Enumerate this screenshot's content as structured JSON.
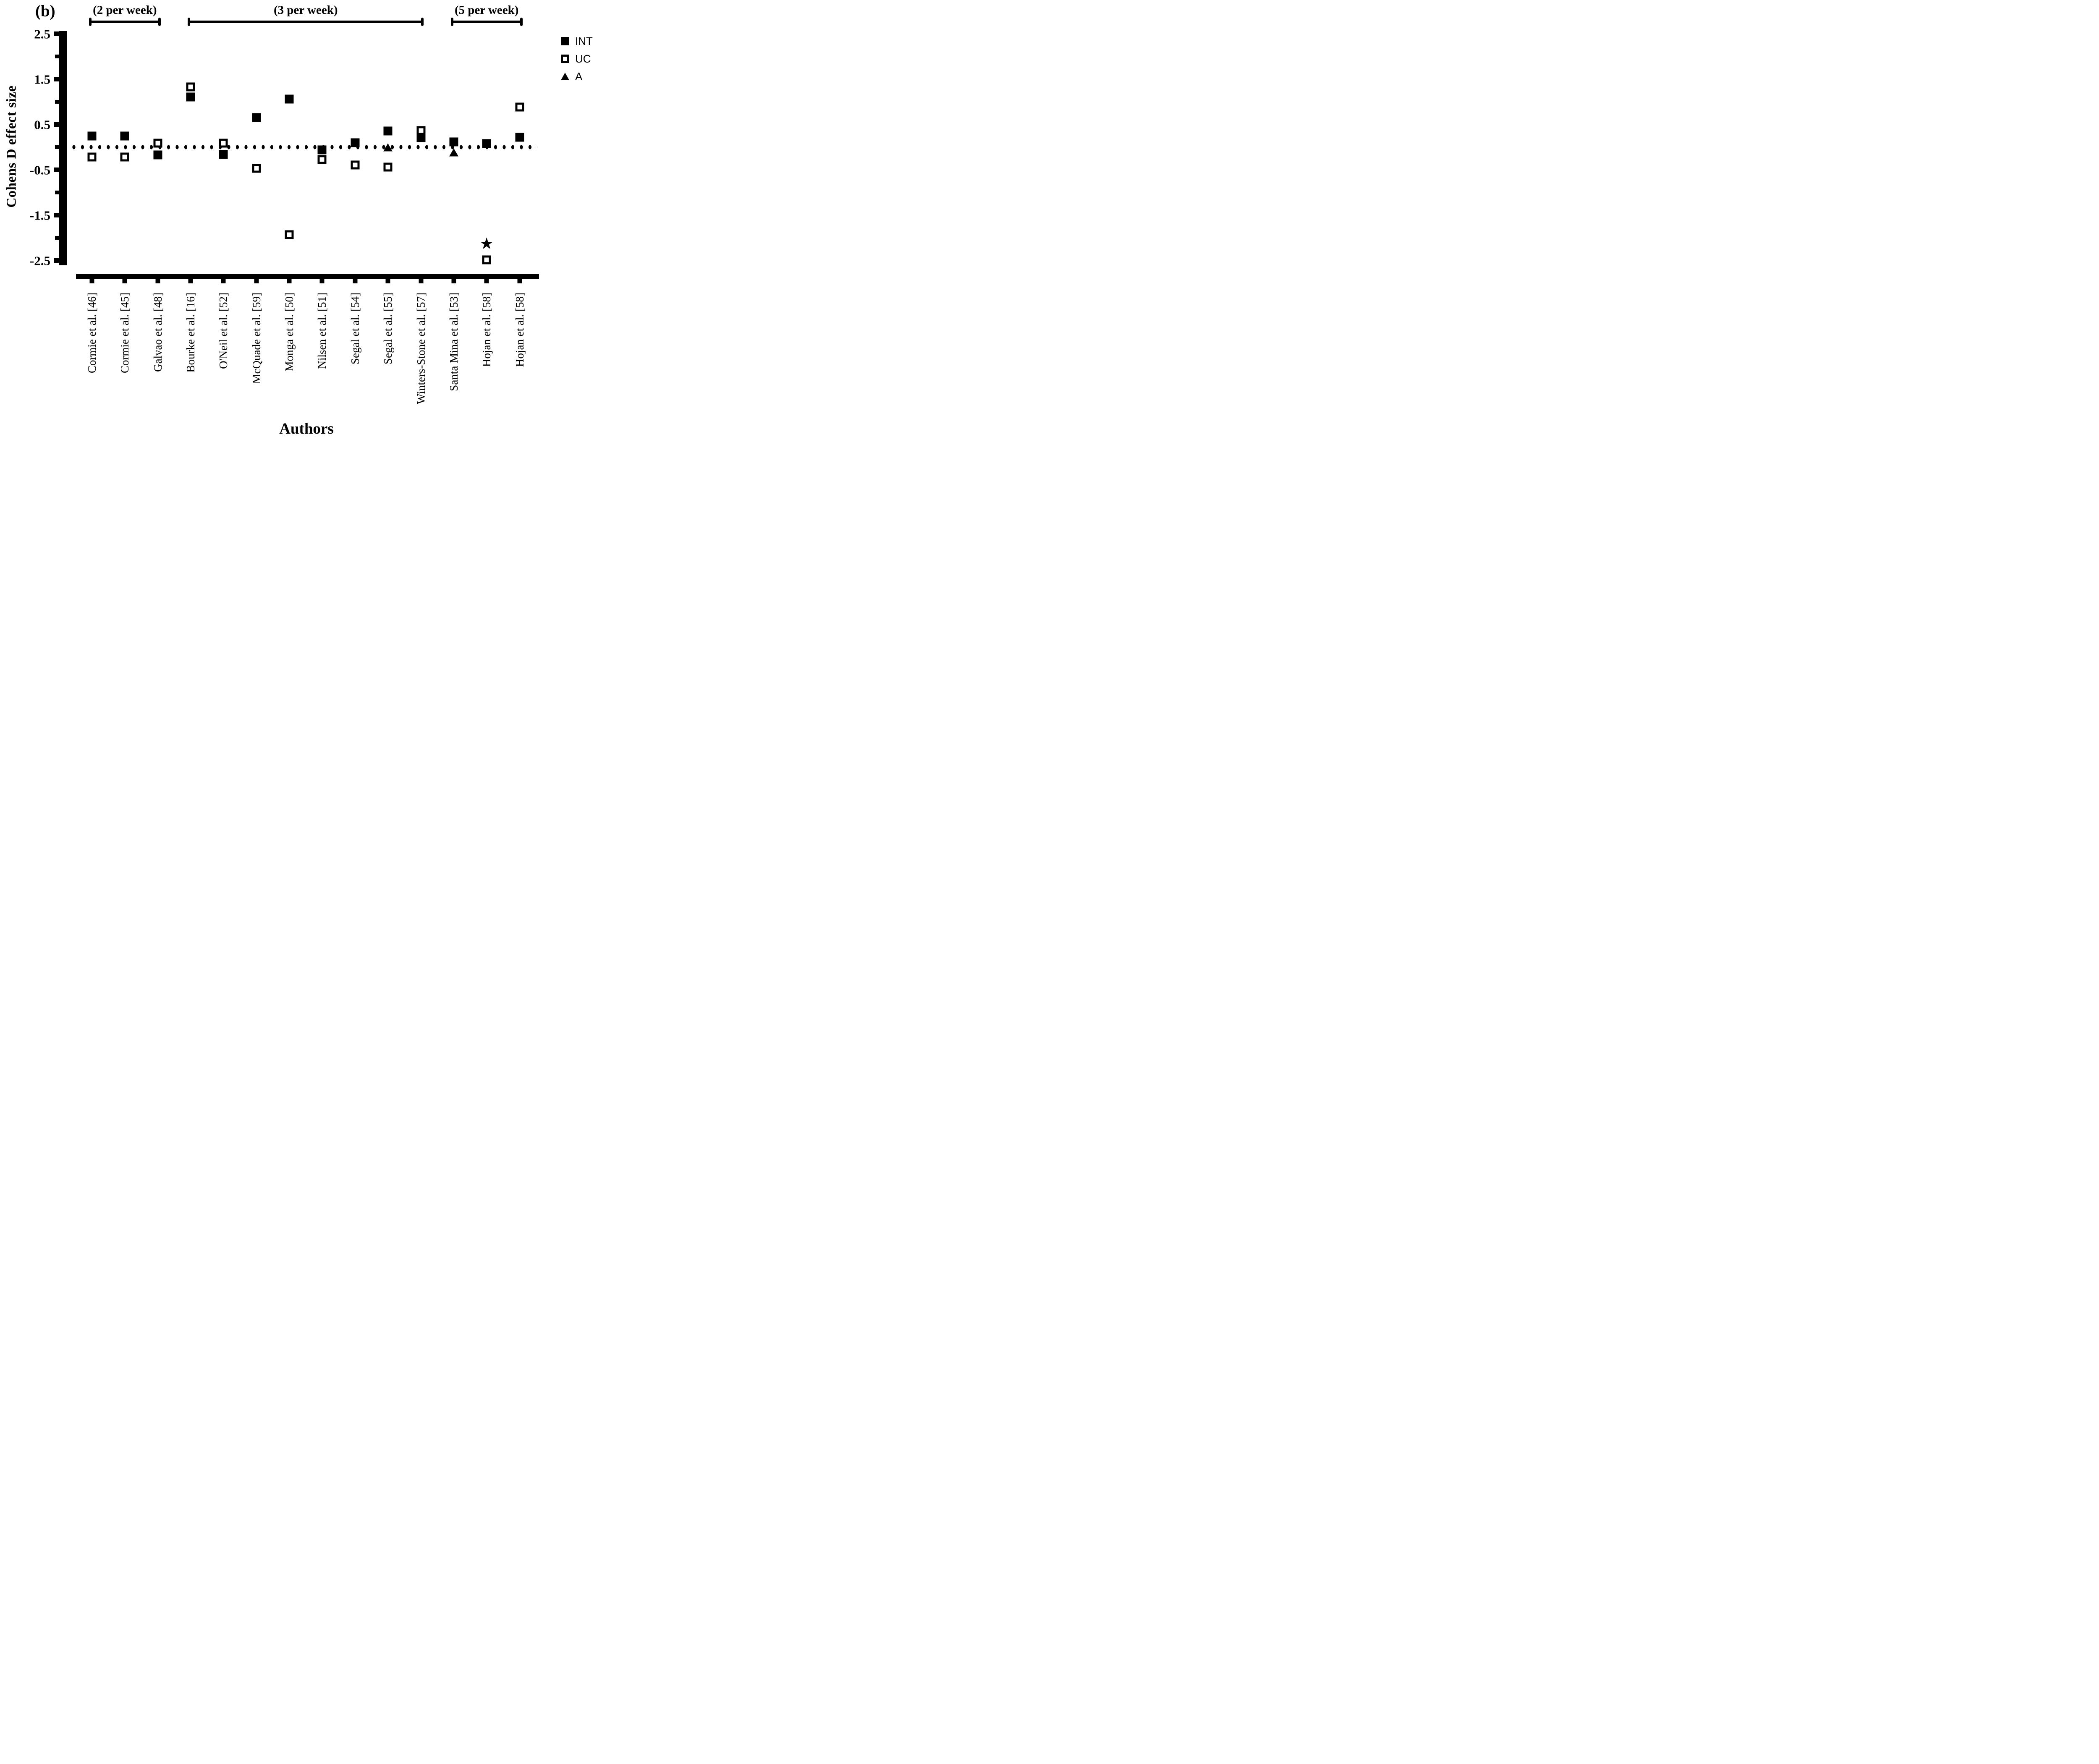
{
  "figure_label": "(b)",
  "axes": {
    "y_title": "Cohens D effect size",
    "x_title": "Authors",
    "y_ticks_major": [
      2.5,
      1.5,
      0.5,
      -0.5,
      -1.5,
      -2.5
    ],
    "y_ticks_minor": [
      2.0,
      1.0,
      0.0,
      -1.0,
      -2.0
    ],
    "ylim": [
      -2.5,
      2.5
    ]
  },
  "chart_data": {
    "type": "scatter",
    "title": "",
    "xlabel": "Authors",
    "ylabel": "Cohens D effect size",
    "ylim": [
      -2.5,
      2.5
    ],
    "zero_reference_line": 0,
    "grid": "off",
    "legend_position": "top-right",
    "legend": [
      {
        "label": "INT",
        "marker": "filled-square"
      },
      {
        "label": "UC",
        "marker": "open-square"
      },
      {
        "label": "A",
        "marker": "filled-triangle"
      }
    ],
    "groups": [
      {
        "label": "(2 per week)",
        "from_index": 0,
        "to_index": 2
      },
      {
        "label": "(3 per week)",
        "from_index": 3,
        "to_index": 10
      },
      {
        "label": "(5 per week)",
        "from_index": 11,
        "to_index": 13
      }
    ],
    "categories": [
      "Cormie et al. [46]",
      "Cormie et al. [45]",
      "Galvao et al. [48]",
      "Bourke et al. [16]",
      "O'Neil et al. [52]",
      "McQuade et al. [59]",
      "Monga et al. [50]",
      "Nilsen et al. [51]",
      "Segal et al. [54]",
      "Segal et al. [55]",
      "Winters-Stone et al. [57]",
      "Santa Mina et al. [53]",
      "Hojan et al. [58]",
      "Hojan et al. [58]"
    ],
    "series": [
      {
        "name": "INT",
        "marker": "filled-square",
        "values": [
          0.25,
          0.25,
          -0.17,
          1.11,
          -0.16,
          0.65,
          1.06,
          -0.06,
          0.1,
          0.36,
          0.21,
          0.12,
          0.08,
          0.22
        ]
      },
      {
        "name": "UC",
        "marker": "open-square",
        "values": [
          -0.22,
          -0.22,
          0.09,
          1.33,
          0.09,
          -0.47,
          -1.93,
          -0.27,
          -0.39,
          -0.44,
          0.37,
          null,
          -2.49,
          0.88
        ]
      },
      {
        "name": "A",
        "marker": "filled-triangle",
        "values": [
          null,
          null,
          null,
          null,
          null,
          null,
          null,
          null,
          null,
          0.0,
          null,
          -0.12,
          null,
          null
        ]
      }
    ],
    "annotations": [
      {
        "type": "star",
        "symbol": "★",
        "category_index": 12,
        "y": -2.15
      }
    ]
  }
}
